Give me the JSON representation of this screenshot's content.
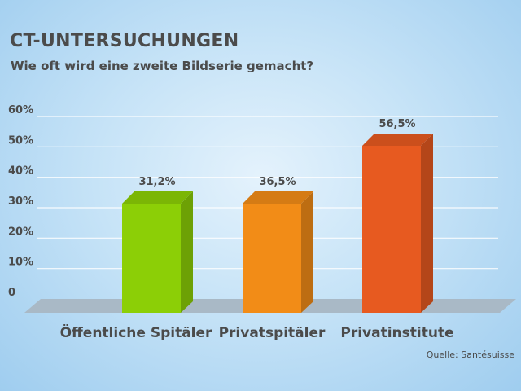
{
  "header": {
    "title": "CT-UNTERSUCHUNGEN",
    "subtitle": "Wie oft wird eine zweite Bildserie gemacht?"
  },
  "source": "Quelle: Santésuisse",
  "chart_data": {
    "type": "bar",
    "title": "CT-UNTERSUCHUNGEN",
    "subtitle": "Wie oft wird eine zweite Bildserie gemacht?",
    "categories": [
      "Öffentliche Spitäler",
      "Privatspitäler",
      "Privatinstitute"
    ],
    "values": [
      31.2,
      36.5,
      56.5
    ],
    "value_labels": [
      "31,2%",
      "36,5%",
      "56,5%"
    ],
    "colors": [
      "#8ccf06",
      "#f28c17",
      "#e75a20"
    ],
    "ylim": [
      0,
      60
    ],
    "yticks": [
      0,
      10,
      20,
      30,
      40,
      50,
      60
    ],
    "ytick_labels": [
      "0",
      "10%",
      "20%",
      "30%",
      "40%",
      "50%",
      "60%"
    ],
    "grid": true,
    "style": "3d"
  }
}
